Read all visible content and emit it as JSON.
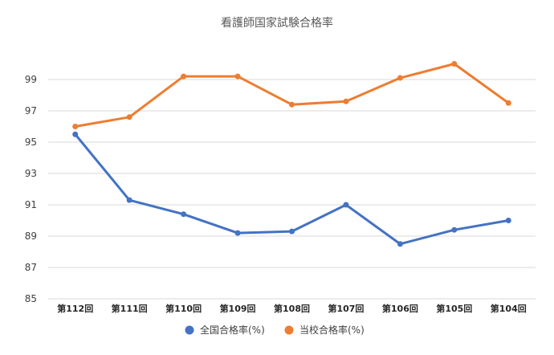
{
  "chart_data": {
    "type": "line",
    "title": "看護師国家試験合格率",
    "categories": [
      "第112回",
      "第111回",
      "第110回",
      "第109回",
      "第108回",
      "第107回",
      "第106回",
      "第105回",
      "第104回"
    ],
    "ylim": [
      85,
      101
    ],
    "yticks": [
      85,
      87,
      89,
      91,
      93,
      95,
      97,
      99
    ],
    "grid": true,
    "legend_position": "bottom",
    "series": [
      {
        "name": "全国合格率(%)",
        "color": "#4472C4",
        "values": [
          95.5,
          91.3,
          90.4,
          89.2,
          89.3,
          91.0,
          88.5,
          89.4,
          90.0
        ]
      },
      {
        "name": "当校合格率(%)",
        "color": "#ED7D31",
        "values": [
          96.0,
          96.6,
          99.2,
          99.2,
          97.4,
          97.6,
          99.1,
          100.0,
          97.5
        ]
      }
    ]
  }
}
